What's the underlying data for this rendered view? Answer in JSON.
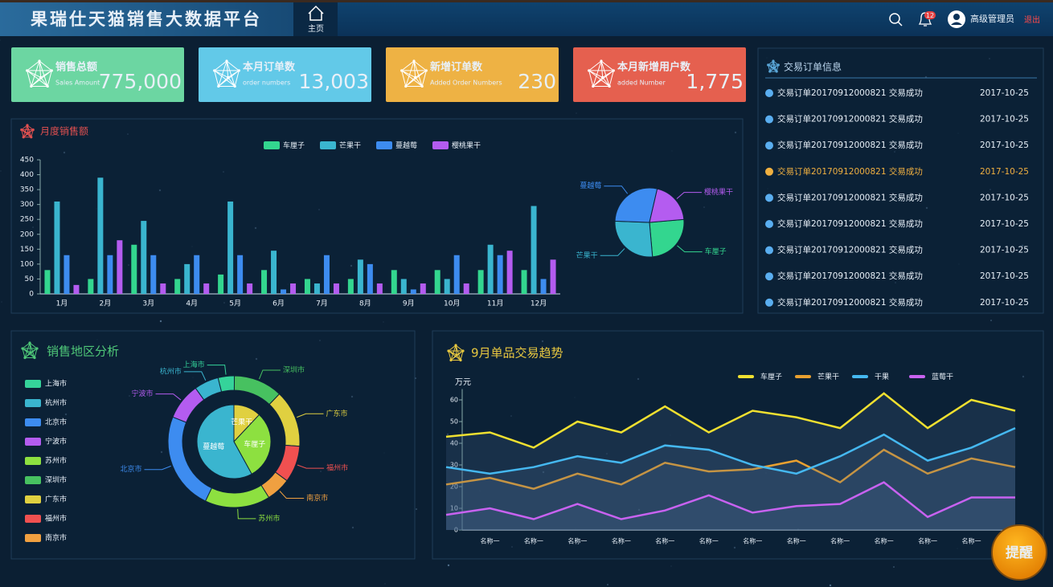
{
  "header": {
    "title": "果瑞仕天猫销售大数据平台",
    "nav": "主页",
    "badge": "12",
    "user": "高级管理员",
    "logout": "退出"
  },
  "kpis": [
    {
      "title": "销售总额",
      "subtitle": "Sales Amount",
      "value": "775,000",
      "color": "#6cd6a2"
    },
    {
      "title": "本月订单数",
      "subtitle": "order numbers",
      "value": "13,003",
      "color": "#62c9e8"
    },
    {
      "title": "新增订单数",
      "subtitle": "Added Order Numbers",
      "value": "230",
      "color": "#eeb244"
    },
    {
      "title": "本月新增用户数",
      "subtitle": "added Number",
      "value": "1,775",
      "color": "#e5604f"
    }
  ],
  "orders": {
    "title": "交易订单信息",
    "highlight": 3,
    "rows": [
      {
        "text": "交易订单20170912000821 交易成功",
        "date": "2017-10-25"
      },
      {
        "text": "交易订单20170912000821 交易成功",
        "date": "2017-10-25"
      },
      {
        "text": "交易订单20170912000821 交易成功",
        "date": "2017-10-25"
      },
      {
        "text": "交易订单20170912000821 交易成功",
        "date": "2017-10-25"
      },
      {
        "text": "交易订单20170912000821 交易成功",
        "date": "2017-10-25"
      },
      {
        "text": "交易订单20170912000821 交易成功",
        "date": "2017-10-25"
      },
      {
        "text": "交易订单20170912000821 交易成功",
        "date": "2017-10-25"
      },
      {
        "text": "交易订单20170912000821 交易成功",
        "date": "2017-10-25"
      },
      {
        "text": "交易订单20170912000821 交易成功",
        "date": "2017-10-25"
      }
    ]
  },
  "reminder": "提醒",
  "chart_data": [
    {
      "type": "bar",
      "title": "月度销售额",
      "categories": [
        "1月",
        "2月",
        "3月",
        "4月",
        "5月",
        "6月",
        "7月",
        "8月",
        "9月",
        "10月",
        "11月",
        "12月"
      ],
      "series": [
        {
          "name": "车厘子",
          "color": "#33d68f",
          "values": [
            80,
            50,
            165,
            50,
            65,
            80,
            50,
            50,
            80,
            80,
            80,
            80
          ]
        },
        {
          "name": "芒果干",
          "color": "#3ab5cf",
          "values": [
            310,
            390,
            245,
            100,
            310,
            145,
            35,
            115,
            50,
            50,
            165,
            295
          ]
        },
        {
          "name": "蔓越莓",
          "color": "#3d8cf0",
          "values": [
            130,
            130,
            130,
            130,
            130,
            15,
            130,
            100,
            15,
            130,
            130,
            50
          ]
        },
        {
          "name": "樱桃果干",
          "color": "#b45cf0",
          "values": [
            30,
            180,
            35,
            35,
            35,
            35,
            35,
            35,
            35,
            35,
            145,
            115
          ]
        }
      ],
      "ylim": [
        0,
        450
      ],
      "yticks": [
        0,
        50,
        100,
        150,
        200,
        250,
        300,
        350,
        400,
        450
      ]
    },
    {
      "type": "pie",
      "categories": [
        "车厘子",
        "芒果干",
        "蔓越莓",
        "樱桃果干"
      ],
      "values": [
        25,
        27,
        28,
        20
      ],
      "colors": [
        "#33d68f",
        "#3ab5cf",
        "#3d8cf0",
        "#b45cf0"
      ]
    },
    {
      "type": "donut",
      "title": "销售地区分析",
      "legend": [
        "上海市",
        "杭州市",
        "北京市",
        "宁波市",
        "苏州市",
        "深圳市",
        "广东市",
        "福州市",
        "南京市"
      ],
      "outer": {
        "categories": [
          "上海市",
          "深圳市",
          "广东市",
          "福州市",
          "南京市",
          "苏州市",
          "北京市",
          "宁波市",
          "杭州市"
        ],
        "values": [
          4,
          12,
          14,
          9,
          6,
          16,
          24,
          9,
          6
        ],
        "colors": [
          "#35d39a",
          "#47c160",
          "#e0d040",
          "#f05050",
          "#f0a040",
          "#8de040",
          "#3d8cf0",
          "#b45cf0",
          "#3ab5cf"
        ]
      },
      "inner": {
        "categories": [
          "芒果干",
          "车厘子",
          "蔓越莓"
        ],
        "values": [
          12,
          30,
          58
        ],
        "colors": [
          "#e0d040",
          "#8de040",
          "#3ab5cf"
        ]
      }
    },
    {
      "type": "line",
      "title": "9月单品交易趋势",
      "y_label": "万元",
      "categories": [
        null,
        "名称一",
        "名称一",
        "名称一",
        "名称一",
        "名称一",
        "名称一",
        "名称一",
        "名称一",
        "名称一",
        "名称一",
        "名称一",
        "名称一",
        null
      ],
      "series": [
        {
          "name": "车厘子",
          "color": "#f0e030",
          "values": [
            43,
            45,
            38,
            50,
            45,
            57,
            45,
            55,
            52,
            47,
            63,
            47,
            60,
            55
          ]
        },
        {
          "name": "芒果干",
          "color": "#e8a030",
          "values": [
            21,
            24,
            19,
            26,
            21,
            31,
            27,
            28,
            32,
            22,
            37,
            26,
            33,
            29
          ]
        },
        {
          "name": "干果",
          "color": "#45b8f0",
          "values": [
            29,
            26,
            29,
            34,
            31,
            39,
            37,
            30,
            26,
            34,
            44,
            32,
            38,
            47
          ]
        },
        {
          "name": "蓝莓干",
          "color": "#c862f0",
          "values": [
            7,
            10,
            5,
            12,
            5,
            9,
            16,
            8,
            11,
            12,
            22,
            6,
            15,
            15
          ]
        }
      ],
      "ylim": [
        0,
        65
      ],
      "yticks": [
        0,
        10,
        20,
        30,
        40,
        50,
        60
      ]
    }
  ]
}
